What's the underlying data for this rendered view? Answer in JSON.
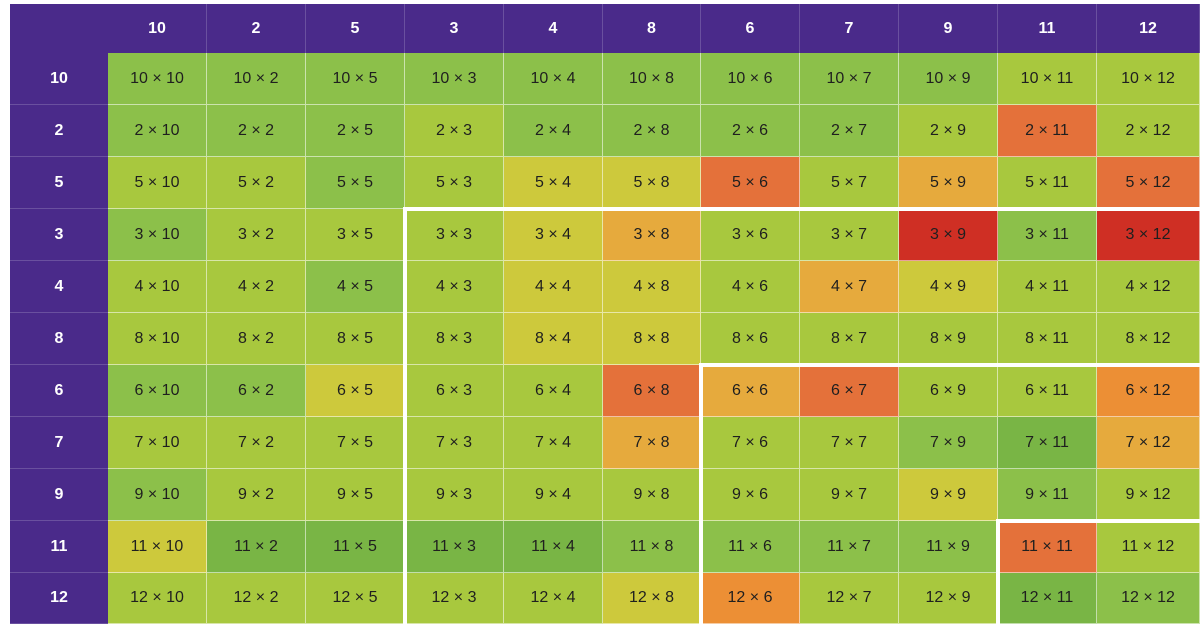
{
  "table": {
    "column_headers": [
      "10",
      "2",
      "5",
      "3",
      "4",
      "8",
      "6",
      "7",
      "9",
      "11",
      "12"
    ],
    "row_headers": [
      "10",
      "2",
      "5",
      "3",
      "4",
      "8",
      "6",
      "7",
      "9",
      "11",
      "12"
    ],
    "multiply_sign": "×",
    "colors": {
      "header_bg": "#4a2a8a",
      "palette": {
        "g": "#8cc04a",
        "dg": "#79b545",
        "lg": "#a8c83e",
        "y": "#cdc93c",
        "o": "#e6aa3d",
        "do": "#ec8f35",
        "ro": "#e4713a",
        "r": "#cf2f24"
      }
    },
    "cell_colors": [
      [
        "g",
        "g",
        "g",
        "g",
        "g",
        "g",
        "g",
        "g",
        "g",
        "lg",
        "lg"
      ],
      [
        "g",
        "g",
        "g",
        "lg",
        "g",
        "g",
        "g",
        "g",
        "lg",
        "ro",
        "lg"
      ],
      [
        "lg",
        "lg",
        "g",
        "lg",
        "y",
        "y",
        "ro",
        "lg",
        "o",
        "lg",
        "ro"
      ],
      [
        "g",
        "lg",
        "lg",
        "lg",
        "y",
        "o",
        "lg",
        "lg",
        "r",
        "g",
        "r"
      ],
      [
        "lg",
        "lg",
        "g",
        "lg",
        "y",
        "y",
        "lg",
        "o",
        "y",
        "lg",
        "lg"
      ],
      [
        "lg",
        "lg",
        "lg",
        "lg",
        "y",
        "y",
        "lg",
        "lg",
        "lg",
        "lg",
        "lg"
      ],
      [
        "g",
        "g",
        "y",
        "lg",
        "lg",
        "ro",
        "o",
        "ro",
        "lg",
        "lg",
        "do"
      ],
      [
        "lg",
        "lg",
        "lg",
        "lg",
        "lg",
        "o",
        "lg",
        "lg",
        "g",
        "dg",
        "o"
      ],
      [
        "g",
        "lg",
        "lg",
        "lg",
        "lg",
        "lg",
        "lg",
        "lg",
        "y",
        "g",
        "lg"
      ],
      [
        "y",
        "dg",
        "dg",
        "dg",
        "dg",
        "g",
        "g",
        "g",
        "g",
        "ro",
        "lg"
      ],
      [
        "lg",
        "lg",
        "lg",
        "lg",
        "lg",
        "y",
        "do",
        "lg",
        "lg",
        "dg",
        "g"
      ]
    ]
  }
}
